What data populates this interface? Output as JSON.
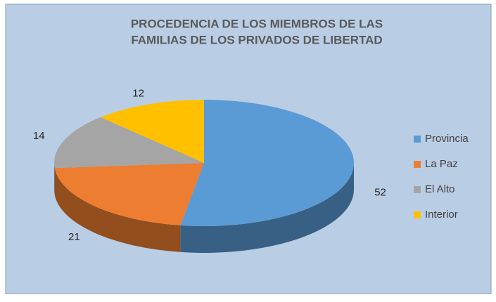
{
  "chart_data": {
    "type": "pie3d",
    "title": [
      "PROCEDENCIA DE LOS MIEMBROS DE LAS",
      "FAMILIAS DE LOS PRIVADOS DE LIBERTAD"
    ],
    "categories": [
      "Provincia",
      "La Paz",
      "El Alto",
      "Interior"
    ],
    "values": [
      52,
      21,
      14,
      12
    ],
    "colors": [
      "#5b9bd5",
      "#ed7d31",
      "#a5a5a5",
      "#ffc000"
    ],
    "legend": "right"
  }
}
